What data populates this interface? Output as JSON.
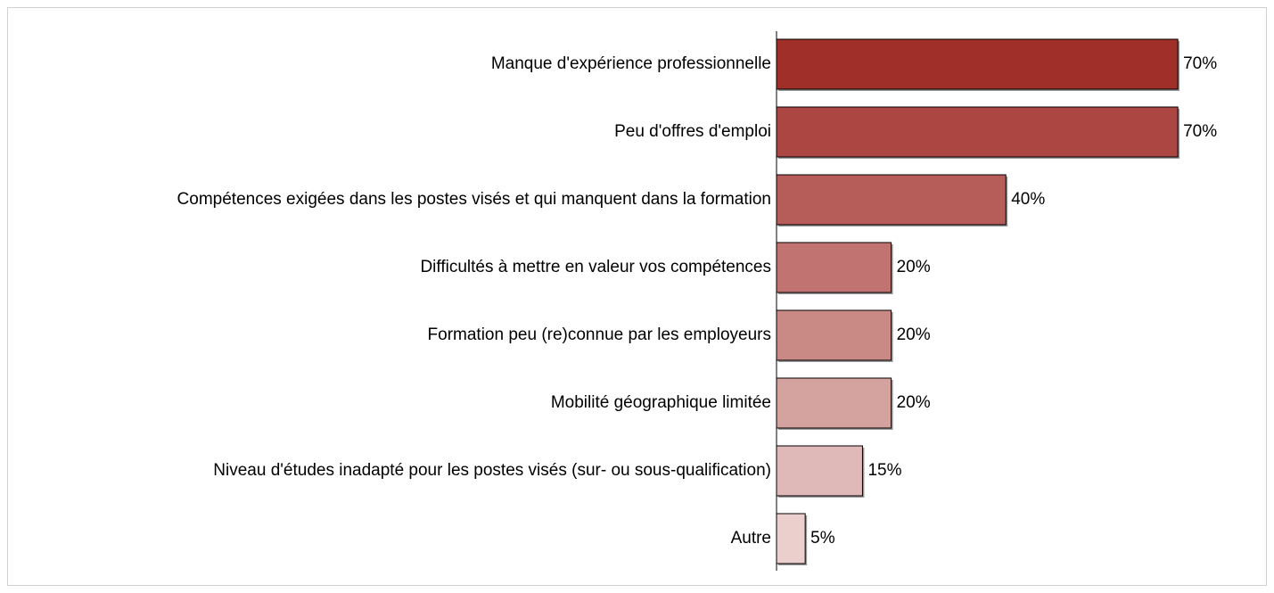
{
  "chart_data": {
    "type": "bar",
    "orientation": "horizontal",
    "categories": [
      "Manque d'expérience professionnelle",
      "Peu d'offres d'emploi",
      "Compétences exigées dans les postes visés et qui manquent dans la formation",
      "Difficultés à mettre en valeur vos compétences",
      "Formation peu (re)connue par les employeurs",
      "Mobilité géographique limitée",
      "Niveau d'études inadapté pour les postes visés (sur- ou sous-qualification)",
      "Autre"
    ],
    "values": [
      70,
      70,
      40,
      20,
      20,
      20,
      15,
      5
    ],
    "value_labels": [
      "70%",
      "70%",
      "40%",
      "20%",
      "20%",
      "20%",
      "15%",
      "5%"
    ],
    "colors": [
      "#a02f29",
      "#ab4643",
      "#b65d59",
      "#c07370",
      "#c98985",
      "#d4a29f",
      "#dfb9b7",
      "#eacfcd"
    ]
  }
}
